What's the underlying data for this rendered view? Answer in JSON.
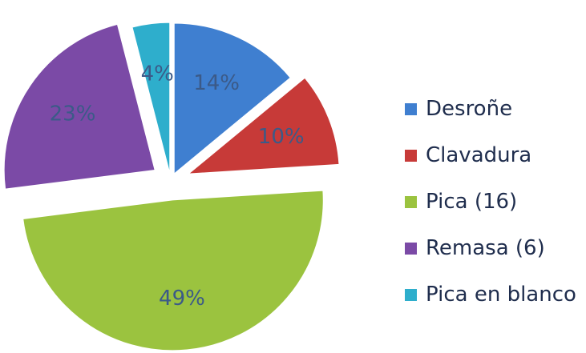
{
  "chart_data": {
    "type": "pie",
    "title": "",
    "slices": [
      {
        "name": "Desroñe",
        "value": 14,
        "label": "14%",
        "color": "#3f7fd0",
        "explode": 10
      },
      {
        "name": "Clavadura",
        "value": 10,
        "label": "10%",
        "color": "#c73a38",
        "explode": 24
      },
      {
        "name": "Pica (16)",
        "value": 49,
        "label": "49%",
        "color": "#9bc33f",
        "explode": 24
      },
      {
        "name": "Remasa (6)",
        "value": 23,
        "label": "23%",
        "color": "#7b4aa6",
        "explode": 24
      },
      {
        "name": "Pica en blanco",
        "value": 4,
        "label": "4%",
        "color": "#2eaecc",
        "explode": 10
      }
    ],
    "legend_position": "right",
    "start_angle_deg": 0,
    "direction": "clockwise"
  }
}
